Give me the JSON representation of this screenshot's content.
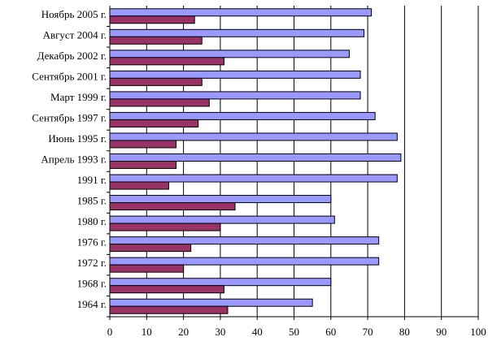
{
  "chart_data": {
    "type": "hbar",
    "categories": [
      "Ноябрь 2005 г.",
      "Август 2004 г.",
      "Декабрь 2002 г.",
      "Сентябрь 2001 г.",
      "Март 1999 г.",
      "Сентябрь 1997 г.",
      "Июнь 1995 г.",
      "Апрель 1993 г.",
      "1991 г.",
      "1985 г.",
      "1980 г.",
      "1976 г.",
      "1972 г.",
      "1968 г.",
      "1964 г."
    ],
    "series": [
      {
        "color": "#9999ff",
        "values": [
          71,
          69,
          65,
          68,
          68,
          72,
          78,
          79,
          78,
          60,
          61,
          73,
          73,
          60,
          55
        ]
      },
      {
        "color": "#993366",
        "values": [
          23,
          25,
          31,
          25,
          27,
          24,
          18,
          18,
          16,
          34,
          30,
          22,
          20,
          31,
          32
        ]
      }
    ],
    "xlim": [
      0,
      100
    ],
    "xticks": [
      0,
      10,
      20,
      30,
      40,
      50,
      60,
      70,
      80,
      90,
      100
    ],
    "grid": true
  }
}
